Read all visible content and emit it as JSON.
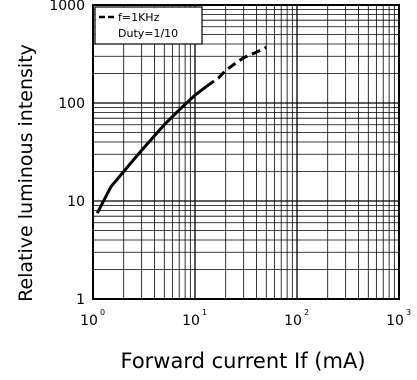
{
  "chart_data": {
    "type": "line",
    "xlabel": "Forward current If (mA)",
    "ylabel": "Relative luminous intensity",
    "x_scale": "log",
    "y_scale": "log",
    "xlim": [
      1,
      1000
    ],
    "ylim": [
      1,
      1000
    ],
    "x_ticks": [
      {
        "base": "10",
        "exp": "0"
      },
      {
        "base": "10",
        "exp": "1"
      },
      {
        "base": "10",
        "exp": "2"
      },
      {
        "base": "10",
        "exp": "3"
      }
    ],
    "y_ticks": [
      "1",
      "10",
      "100",
      "1000"
    ],
    "grid": true,
    "legend": {
      "placement": "top-left",
      "entries": [
        {
          "label": "f=1KHz",
          "style": "dashed"
        },
        {
          "label": "Duty=1/10",
          "style": "none"
        }
      ]
    },
    "series": [
      {
        "style": "solid",
        "x": [
          1.1,
          1.5,
          2,
          3,
          5,
          7,
          10,
          13
        ],
        "y": [
          7.5,
          14,
          20,
          33,
          60,
          85,
          120,
          148
        ]
      },
      {
        "style": "dashed",
        "x": [
          13,
          17,
          20,
          25,
          30,
          40,
          50
        ],
        "y": [
          148,
          180,
          215,
          255,
          290,
          330,
          370
        ]
      }
    ]
  }
}
